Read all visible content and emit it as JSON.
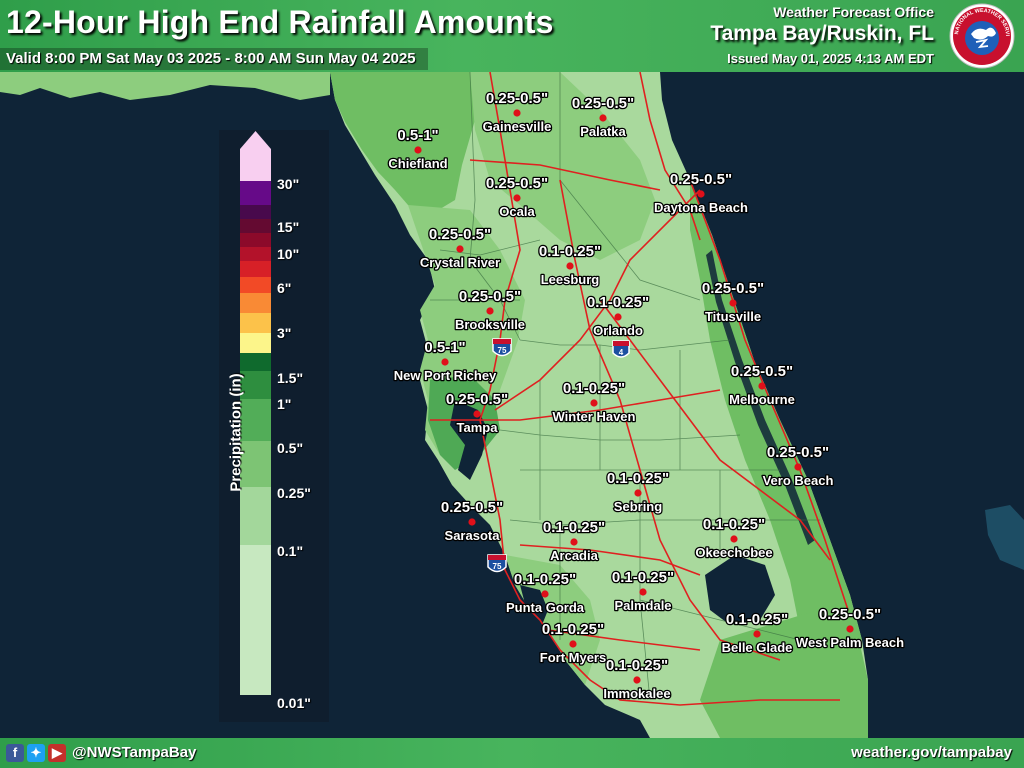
{
  "header": {
    "title": "12-Hour High End Rainfall Amounts",
    "valid": "Valid 8:00 PM Sat May 03 2025 - 8:00 AM Sun May 04 2025",
    "office_label": "Weather Forecast Office",
    "office_name": "Tampa Bay/Ruskin, FL",
    "issued": "Issued May 01, 2025 4:13 AM EDT"
  },
  "logo": {
    "arc_text": "NATIONAL WEATHER SERVICE"
  },
  "footer": {
    "handle": "@NWSTampaBay",
    "url": "weather.gov/tampabay",
    "social_icons": [
      "facebook-icon",
      "twitter-icon",
      "youtube-icon"
    ]
  },
  "legend": {
    "title": "Precipitation (in)",
    "ticks": [
      "0.01\"",
      "0.1\"",
      "0.25\"",
      "0.5\"",
      "1\"",
      "1.5\"",
      "3\"",
      "6\"",
      "10\"",
      "15\"",
      "30\""
    ],
    "colors": [
      "#c7e8c0",
      "#a3d79b",
      "#7dc474",
      "#52ad58",
      "#2e8e3f",
      "#0f6a2d",
      "#fcf58a",
      "#fcc24a",
      "#f98a35",
      "#f24a26",
      "#d72027",
      "#b3122a",
      "#8c0a2a",
      "#640a31",
      "#48094c",
      "#660a88",
      "#f8cff0"
    ]
  },
  "colors": {
    "water": "#0f2437",
    "land_light": "#a9d99d",
    "land_mid": "#8dcd7e",
    "land_dark": "#6fbe63",
    "land_darker": "#4fa955",
    "roads": "#e02020",
    "city_dot": "#e0101a",
    "header_green": "#3aa451"
  },
  "highways": [
    "75",
    "4",
    "75"
  ],
  "cities": [
    {
      "name": "Gainesville",
      "amount": "0.25-0.5\""
    },
    {
      "name": "Palatka",
      "amount": "0.25-0.5\""
    },
    {
      "name": "Chiefland",
      "amount": "0.5-1\""
    },
    {
      "name": "Ocala",
      "amount": "0.25-0.5\""
    },
    {
      "name": "Daytona Beach",
      "amount": "0.25-0.5\""
    },
    {
      "name": "Crystal River",
      "amount": "0.25-0.5\""
    },
    {
      "name": "Leesburg",
      "amount": "0.1-0.25\""
    },
    {
      "name": "Brooksville",
      "amount": "0.25-0.5\""
    },
    {
      "name": "Orlando",
      "amount": "0.1-0.25\""
    },
    {
      "name": "Titusville",
      "amount": "0.25-0.5\""
    },
    {
      "name": "New Port Richey",
      "amount": "0.5-1\""
    },
    {
      "name": "Melbourne",
      "amount": "0.25-0.5\""
    },
    {
      "name": "Tampa",
      "amount": "0.25-0.5\""
    },
    {
      "name": "Winter Haven",
      "amount": "0.1-0.25\""
    },
    {
      "name": "Vero Beach",
      "amount": "0.25-0.5\""
    },
    {
      "name": "Sebring",
      "amount": "0.1-0.25\""
    },
    {
      "name": "Sarasota",
      "amount": "0.25-0.5\""
    },
    {
      "name": "Arcadia",
      "amount": "0.1-0.25\""
    },
    {
      "name": "Okeechobee",
      "amount": "0.1-0.25\""
    },
    {
      "name": "Punta Gorda",
      "amount": "0.1-0.25\""
    },
    {
      "name": "Palmdale",
      "amount": "0.1-0.25\""
    },
    {
      "name": "Belle Glade",
      "amount": "0.1-0.25\""
    },
    {
      "name": "West Palm Beach",
      "amount": "0.25-0.5\""
    },
    {
      "name": "Fort Myers",
      "amount": "0.1-0.25\""
    },
    {
      "name": "Immokalee",
      "amount": "0.1-0.25\""
    }
  ]
}
